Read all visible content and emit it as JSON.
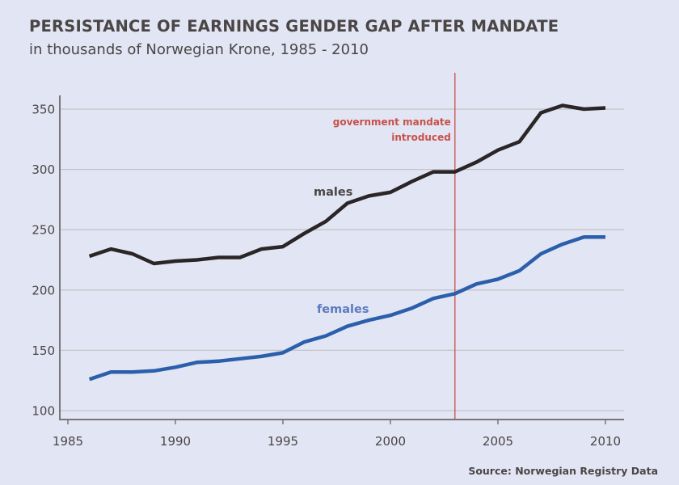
{
  "chart_data": {
    "type": "line",
    "title": "PERSISTANCE OF EARNINGS GENDER GAP AFTER MANDATE",
    "subtitle": "in thousands of Norwegian Krone, 1985 - 2010",
    "xlabel": "",
    "ylabel": "",
    "xlim": [
      1985,
      2010
    ],
    "ylim": [
      100,
      350
    ],
    "x_ticks": [
      1985,
      1990,
      1995,
      2000,
      2005,
      2010
    ],
    "x_tick_labels": [
      "1985",
      "1990",
      "1995",
      "2000",
      "2005",
      "2010"
    ],
    "y_ticks": [
      100,
      150,
      200,
      250,
      300,
      350
    ],
    "y_tick_labels": [
      "100",
      "150",
      "200",
      "250",
      "300",
      "350"
    ],
    "grid": "horizontal",
    "x": [
      1986,
      1987,
      1988,
      1989,
      1990,
      1991,
      1992,
      1993,
      1994,
      1995,
      1996,
      1997,
      1998,
      1999,
      2000,
      2001,
      2002,
      2003,
      2004,
      2005,
      2006,
      2007,
      2008,
      2009,
      2010
    ],
    "series": [
      {
        "name": "males",
        "color": "#2a2526",
        "values": [
          228,
          234,
          230,
          222,
          224,
          225,
          227,
          227,
          234,
          236,
          247,
          257,
          272,
          278,
          281,
          290,
          298,
          298,
          306,
          316,
          323,
          347,
          353,
          350,
          351
        ]
      },
      {
        "name": "females",
        "color": "#2b5fab",
        "values": [
          126,
          132,
          132,
          133,
          136,
          140,
          141,
          143,
          145,
          148,
          157,
          162,
          170,
          175,
          179,
          185,
          193,
          197,
          205,
          209,
          216,
          230,
          238,
          244,
          244
        ]
      }
    ],
    "annotations": [
      {
        "type": "vertical-line",
        "x": 2003,
        "color": "#c9514a",
        "text_lines": [
          "government mandate",
          "introduced"
        ]
      }
    ],
    "source": "Source: Norwegian Registry Data"
  }
}
